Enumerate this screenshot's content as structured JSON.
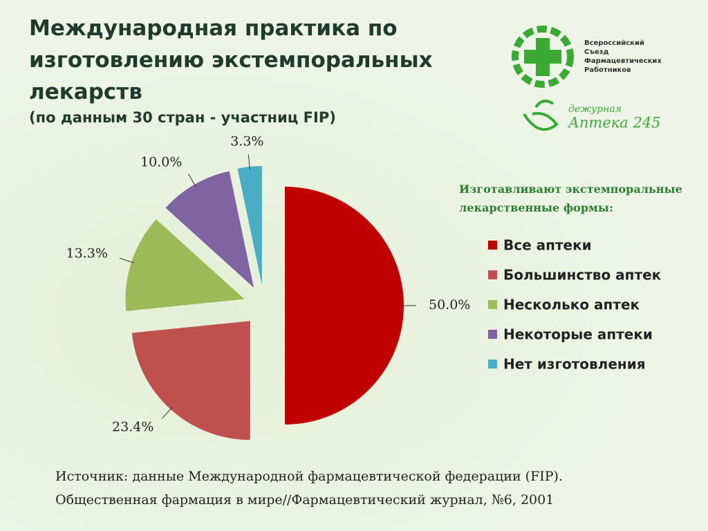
{
  "chart_data": {
    "type": "pie",
    "title": "Международная практика по изготовлению экстемпоральных лекарств",
    "subtitle": "(по данным 30 стран - участниц FIP)",
    "legend_title": "Изготавливают экстемпоральные лекарственные формы:",
    "categories": [
      "Все аптеки",
      "Большинство аптек",
      "Несколько аптек",
      "Некоторые аптеки",
      "Нет изготовления"
    ],
    "values": [
      50.0,
      23.4,
      13.3,
      10.0,
      3.3
    ],
    "value_labels": [
      "50.0%",
      "23.4%",
      "13.3%",
      "10.0%",
      "3.3%"
    ],
    "colors": [
      "#c00000",
      "#c0504d",
      "#9bbb59",
      "#8064a2",
      "#4bacc6"
    ],
    "legend": "right"
  },
  "source": [
    "Источник: данные Международной фармацевтической федерации (FIP).",
    "Общественная фармация в мире//Фармацевтический журнал, №6, 2001"
  ],
  "logos": {
    "congress": [
      "Всероссийский",
      "Съезд",
      "Фармацевтических",
      "Работников"
    ],
    "pharmacy_small": "дежурная",
    "pharmacy_name": "Аптека 245"
  }
}
